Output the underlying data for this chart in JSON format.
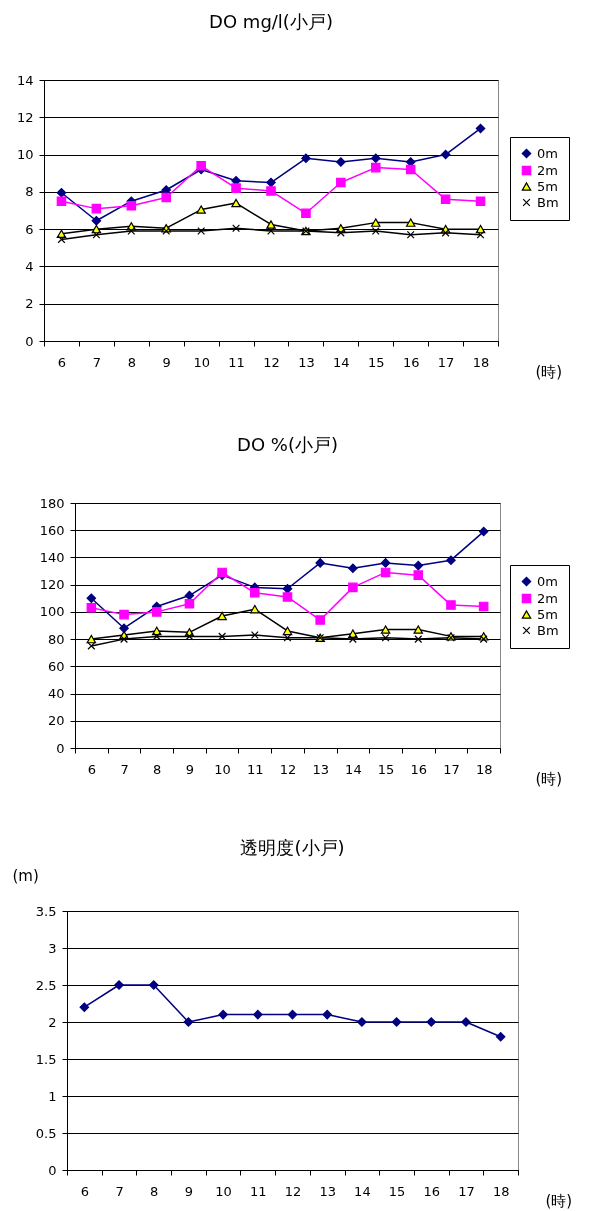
{
  "chart_data": [
    {
      "type": "line",
      "title": "DO mg/l(小戸)",
      "xlabel": "(時)",
      "categories": [
        "6",
        "7",
        "8",
        "9",
        "10",
        "11",
        "12",
        "13",
        "14",
        "15",
        "16",
        "17",
        "18"
      ],
      "ylim": [
        0,
        14
      ],
      "yticks": [
        0,
        2,
        4,
        6,
        8,
        10,
        12,
        14
      ],
      "grid": "y",
      "legend": "right",
      "series": [
        {
          "name": "0m",
          "color": "#000080",
          "marker": "diamond",
          "values": [
            7.95,
            6.45,
            7.5,
            8.1,
            9.2,
            8.6,
            8.5,
            9.8,
            9.6,
            9.8,
            9.6,
            10.0,
            11.4
          ]
        },
        {
          "name": "2m",
          "color": "#ff00ff",
          "marker": "square",
          "values": [
            7.5,
            7.1,
            7.25,
            7.7,
            9.4,
            8.2,
            8.05,
            6.85,
            8.5,
            9.3,
            9.2,
            7.6,
            7.5
          ]
        },
        {
          "name": "5m",
          "color": "#000000",
          "marker": "triangle",
          "values": [
            5.75,
            6.0,
            6.15,
            6.05,
            7.05,
            7.4,
            6.25,
            5.9,
            6.05,
            6.35,
            6.35,
            6.0,
            6.0
          ]
        },
        {
          "name": "Bm",
          "color": "#000000",
          "marker": "cross",
          "values": [
            5.45,
            5.7,
            5.9,
            5.9,
            5.9,
            6.05,
            5.9,
            5.9,
            5.8,
            5.9,
            5.7,
            5.8,
            5.7
          ]
        }
      ]
    },
    {
      "type": "line",
      "title": "DO %(小戸)",
      "xlabel": "(時)",
      "categories": [
        "6",
        "7",
        "8",
        "9",
        "10",
        "11",
        "12",
        "13",
        "14",
        "15",
        "16",
        "17",
        "18"
      ],
      "ylim": [
        0,
        180
      ],
      "yticks": [
        0,
        20,
        40,
        60,
        80,
        100,
        120,
        140,
        160,
        180
      ],
      "grid": "y",
      "legend": "right",
      "series": [
        {
          "name": "0m",
          "color": "#000080",
          "marker": "diamond",
          "values": [
            110,
            88,
            104,
            112,
            127,
            118,
            117,
            136,
            132,
            136,
            134,
            138,
            159
          ]
        },
        {
          "name": "2m",
          "color": "#ff00ff",
          "marker": "square",
          "values": [
            103,
            98,
            100,
            106,
            129,
            114,
            111,
            94,
            118,
            129,
            127,
            105,
            104
          ]
        },
        {
          "name": "5m",
          "color": "#000000",
          "marker": "triangle",
          "values": [
            80,
            83,
            86,
            85,
            97,
            102,
            86,
            81,
            84,
            87,
            87,
            82,
            82
          ]
        },
        {
          "name": "Bm",
          "color": "#000000",
          "marker": "cross",
          "values": [
            75,
            80,
            82,
            82,
            82,
            83,
            81,
            81,
            80,
            81,
            80,
            81,
            80
          ]
        }
      ]
    },
    {
      "type": "line",
      "title": "透明度(小戸)",
      "xlabel": "(時)",
      "ylabel": "(m)",
      "categories": [
        "6",
        "7",
        "8",
        "9",
        "10",
        "11",
        "12",
        "13",
        "14",
        "15",
        "16",
        "17",
        "18"
      ],
      "ylim": [
        0,
        3.5
      ],
      "yticks": [
        0,
        0.5,
        1,
        1.5,
        2,
        2.5,
        3,
        3.5
      ],
      "grid": "y",
      "marker": "diamond",
      "series": [
        {
          "color": "#000080",
          "values": [
            2.2,
            2.5,
            2.5,
            2.0,
            2.1,
            2.1,
            2.1,
            2.1,
            2.0,
            2.0,
            2.0,
            2.0,
            1.8
          ]
        }
      ]
    }
  ]
}
